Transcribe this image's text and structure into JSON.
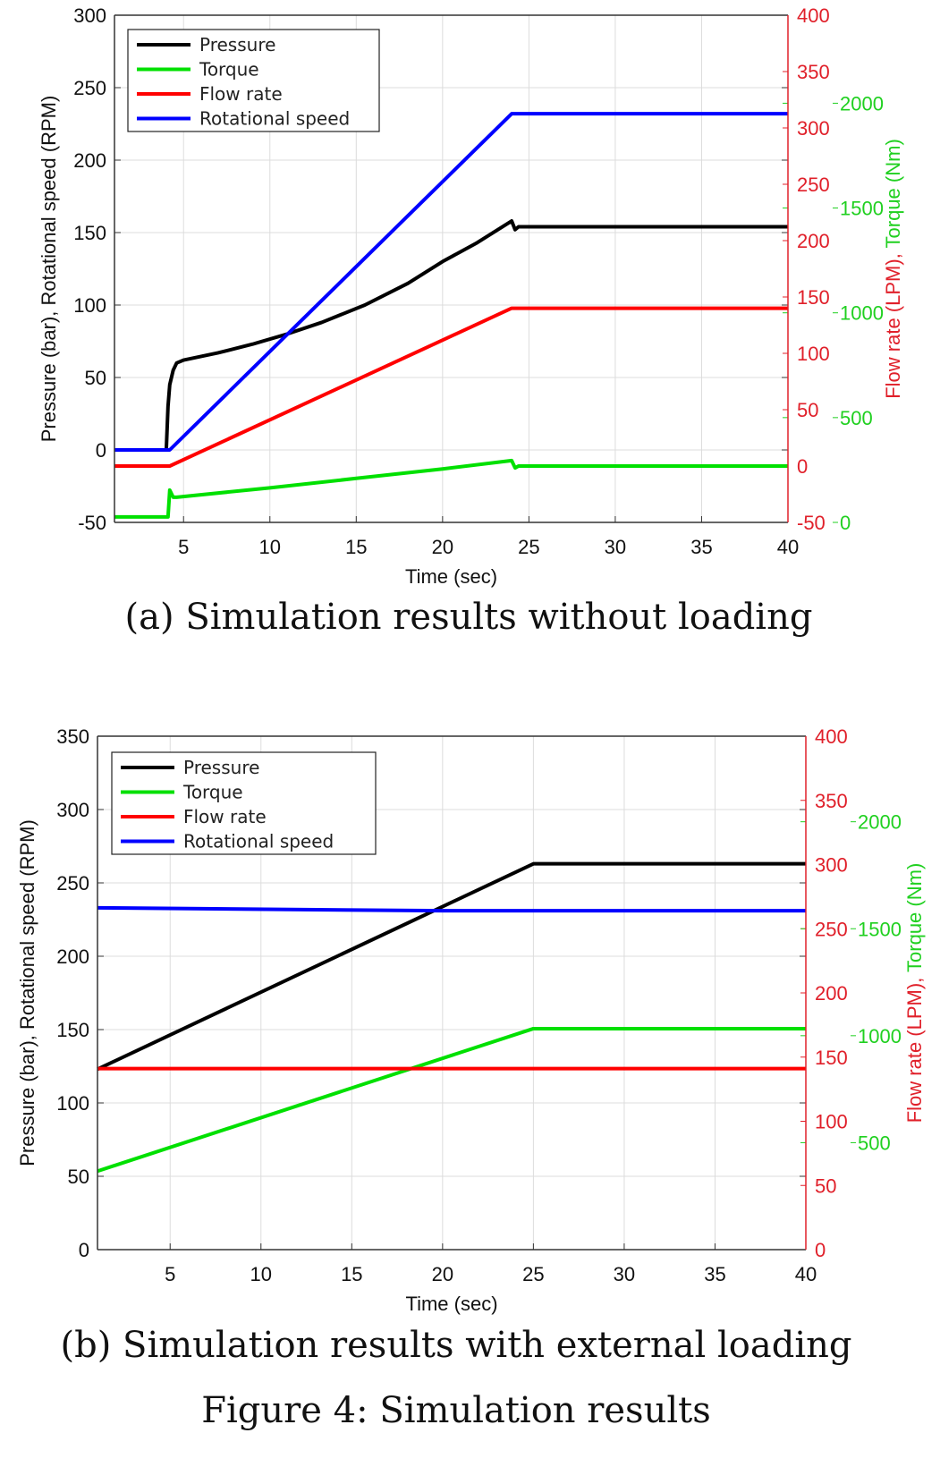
{
  "chart_data": [
    {
      "type": "line",
      "caption": "(a) Simulation results without loading",
      "xlabel": "Time (sec)",
      "ylabel_left": "Pressure (bar), Rotational speed (RPM)",
      "ylabel_right_flow": "Flow rate (LPM),",
      "ylabel_right_torque": "Torque (Nm)",
      "xlim": [
        1,
        40
      ],
      "xticks": [
        5,
        10,
        15,
        20,
        25,
        30,
        35,
        40
      ],
      "ylim_left": [
        -50,
        300
      ],
      "yticks_left": [
        -50,
        0,
        50,
        100,
        150,
        200,
        250,
        300
      ],
      "ylim_flow": [
        -50,
        400
      ],
      "yticks_flow": [
        -50,
        0,
        50,
        100,
        150,
        200,
        250,
        300,
        350,
        400
      ],
      "ylim_torque": [
        0,
        2420
      ],
      "yticks_torque": [
        0,
        500,
        1000,
        1500,
        2000
      ],
      "grid": true,
      "legend_position": "top-left",
      "series": [
        {
          "name": "Pressure",
          "axis": "left",
          "color": "#000000",
          "x": [
            1,
            4.0,
            4.1,
            4.2,
            4.4,
            4.6,
            5,
            7,
            9,
            11,
            13,
            15.5,
            18,
            20,
            22,
            24,
            24.2,
            24.4,
            25,
            40
          ],
          "y": [
            0,
            0,
            30,
            45,
            55,
            60,
            62,
            67,
            73,
            80,
            88,
            100,
            115,
            130,
            143,
            158,
            152,
            154,
            154,
            154
          ]
        },
        {
          "name": "Torque",
          "axis": "torque",
          "color": "#00e000",
          "x": [
            1,
            4.1,
            4.2,
            4.4,
            4.6,
            10,
            15,
            20,
            24,
            24.2,
            24.4,
            25,
            40
          ],
          "y": [
            26,
            26,
            154,
            120,
            120,
            165,
            210,
            255,
            295,
            260,
            269,
            269,
            269
          ]
        },
        {
          "name": "Flow rate",
          "axis": "flow",
          "color": "#ff0000",
          "x": [
            1,
            4.2,
            24,
            25,
            40
          ],
          "y": [
            0,
            0,
            140,
            140,
            140
          ]
        },
        {
          "name": "Rotational speed",
          "axis": "left",
          "color": "#0000ff",
          "x": [
            1,
            4.2,
            24,
            25,
            40
          ],
          "y": [
            0,
            0,
            232,
            232,
            232
          ]
        }
      ]
    },
    {
      "type": "line",
      "caption": "(b) Simulation results with external loading",
      "xlabel": "Time (sec)",
      "ylabel_left": "Pressure (bar), Rotational speed (RPM)",
      "ylabel_right_flow": "Flow rate (LPM),",
      "ylabel_right_torque": "Torque (Nm)",
      "xlim": [
        1,
        40
      ],
      "xticks": [
        5,
        10,
        15,
        20,
        25,
        30,
        35,
        40
      ],
      "ylim_left": [
        0,
        350
      ],
      "yticks_left": [
        0,
        50,
        100,
        150,
        200,
        250,
        300,
        350
      ],
      "ylim_flow": [
        0,
        400
      ],
      "yticks_flow": [
        0,
        50,
        100,
        150,
        200,
        250,
        300,
        350,
        400
      ],
      "ylim_torque": [
        0,
        2400
      ],
      "yticks_torque": [
        500,
        1000,
        1500,
        2000
      ],
      "grid": true,
      "legend_position": "top-left",
      "series": [
        {
          "name": "Pressure",
          "axis": "left",
          "color": "#000000",
          "x": [
            1,
            25,
            40
          ],
          "y": [
            123,
            263,
            263
          ]
        },
        {
          "name": "Torque",
          "axis": "torque",
          "color": "#00e000",
          "x": [
            1,
            25,
            40
          ],
          "y": [
            367,
            1033,
            1033
          ]
        },
        {
          "name": "Flow rate",
          "axis": "flow",
          "color": "#ff0000",
          "x": [
            1,
            40
          ],
          "y": [
            141,
            141
          ]
        },
        {
          "name": "Rotational speed",
          "axis": "left",
          "color": "#0000ff",
          "x": [
            1,
            20,
            25,
            40
          ],
          "y": [
            233,
            231,
            231,
            231
          ]
        }
      ]
    }
  ],
  "figure_caption": "Figure 4: Simulation results",
  "colors": {
    "flow_axis": "#e0202a",
    "torque_axis": "#20d020",
    "grid": "#dcdcdc"
  }
}
